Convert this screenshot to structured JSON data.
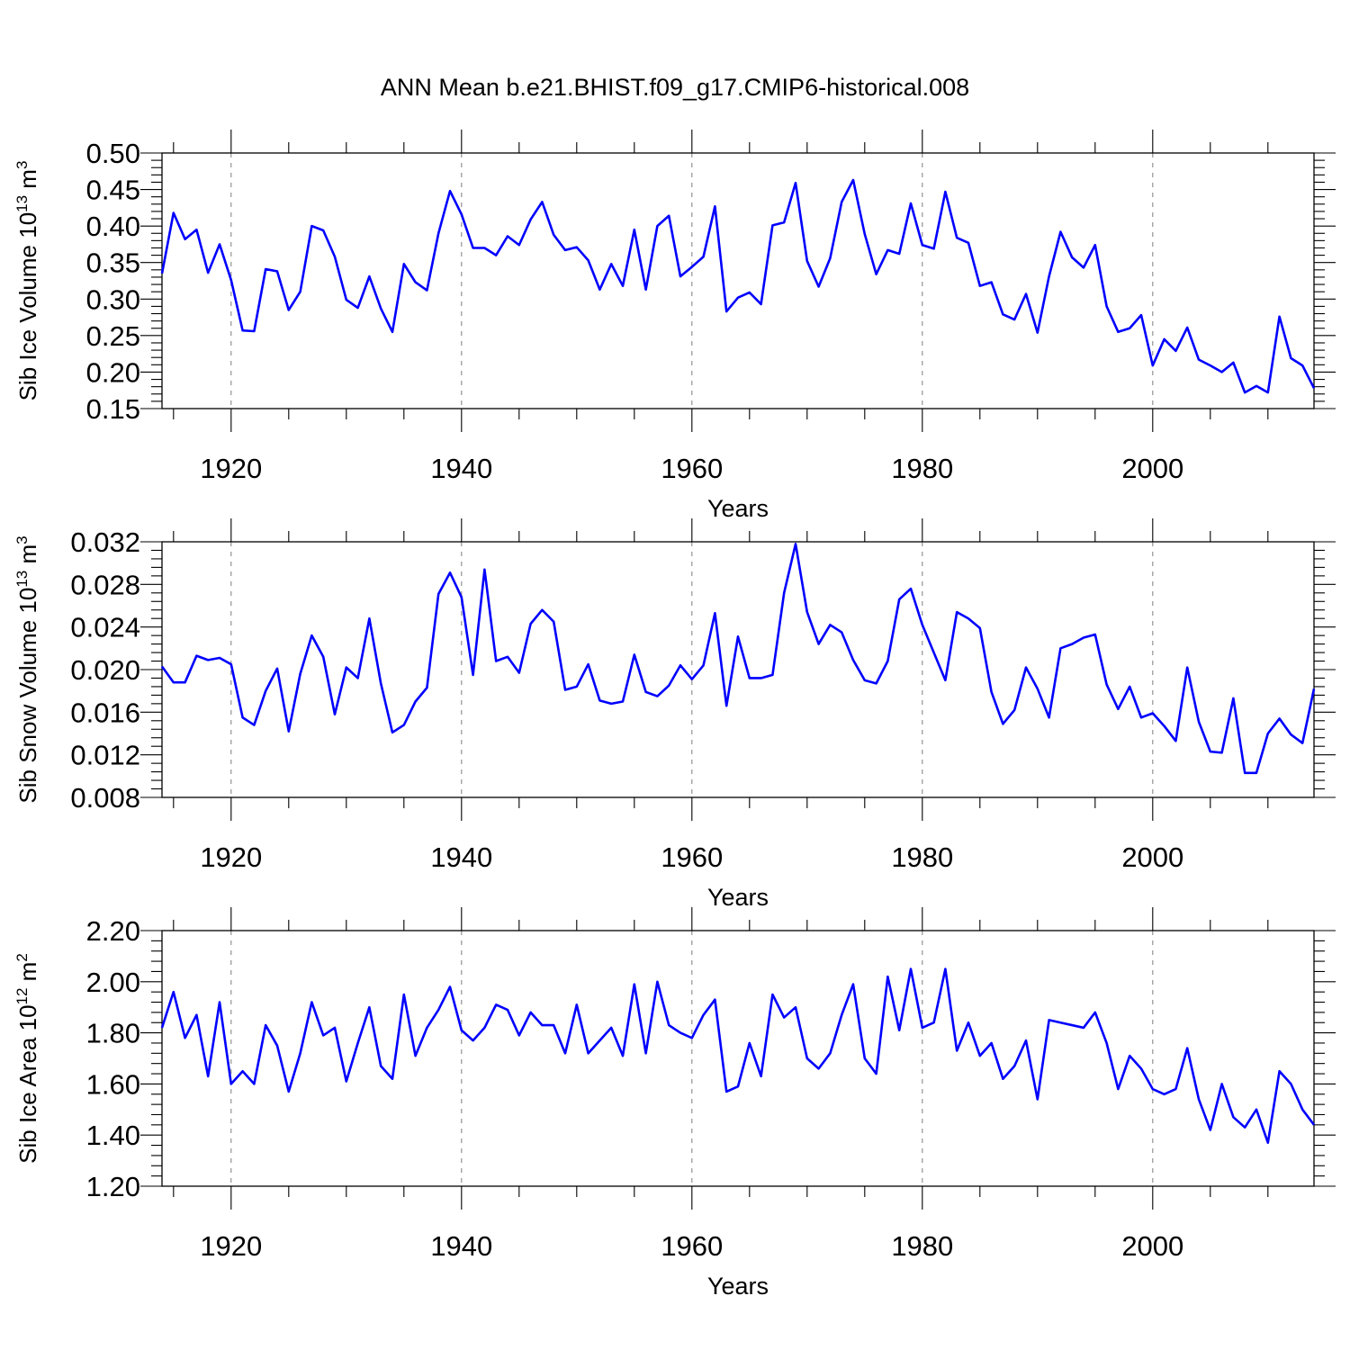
{
  "title": "ANN Mean b.e21.BHIST.f09_g17.CMIP6-historical.008",
  "chart_data": [
    {
      "type": "line",
      "name": "sib-ice-volume",
      "ylabel": "Sib Ice Volume 10",
      "ylabel_exp": "13",
      "ylabel_unit": "m",
      "ylabel_unit_exp": "3",
      "xlabel": "Years",
      "xlim": [
        1914,
        2014
      ],
      "ylim": [
        0.15,
        0.5
      ],
      "yticks": [
        "0.50",
        "0.45",
        "0.40",
        "0.35",
        "0.30",
        "0.25",
        "0.20",
        "0.15"
      ],
      "ytick_values": [
        0.5,
        0.45,
        0.4,
        0.35,
        0.3,
        0.25,
        0.2,
        0.15
      ],
      "xticks": [
        "1920",
        "1940",
        "1960",
        "1980",
        "2000"
      ],
      "xtick_values": [
        1920,
        1940,
        1960,
        1980,
        2000
      ],
      "grid": "dashed vertical at x ticks",
      "series": [
        {
          "name": "Sib Ice Volume",
          "color": "#0000ff",
          "x_start": 1914,
          "values": [
            0.335,
            0.418,
            0.382,
            0.395,
            0.336,
            0.375,
            0.326,
            0.257,
            0.256,
            0.341,
            0.338,
            0.285,
            0.31,
            0.4,
            0.394,
            0.358,
            0.299,
            0.288,
            0.331,
            0.287,
            0.255,
            0.348,
            0.323,
            0.312,
            0.39,
            0.448,
            0.416,
            0.37,
            0.37,
            0.36,
            0.386,
            0.374,
            0.409,
            0.433,
            0.388,
            0.367,
            0.371,
            0.353,
            0.313,
            0.348,
            0.318,
            0.395,
            0.313,
            0.4,
            0.414,
            0.331,
            0.344,
            0.358,
            0.427,
            0.283,
            0.302,
            0.309,
            0.293,
            0.401,
            0.405,
            0.459,
            0.352,
            0.317,
            0.356,
            0.433,
            0.463,
            0.389,
            0.334,
            0.367,
            0.362,
            0.431,
            0.374,
            0.369,
            0.447,
            0.384,
            0.377,
            0.318,
            0.323,
            0.279,
            0.272,
            0.307,
            0.254,
            0.331,
            0.392,
            0.357,
            0.343,
            0.374,
            0.29,
            0.255,
            0.26,
            0.278,
            0.209,
            0.245,
            0.229,
            0.261,
            0.217,
            0.209,
            0.2,
            0.213,
            0.172,
            0.181,
            0.172,
            0.276,
            0.219,
            0.209,
            0.178
          ]
        }
      ]
    },
    {
      "type": "line",
      "name": "sib-snow-volume",
      "ylabel": "Sib Snow Volume 10",
      "ylabel_exp": "13",
      "ylabel_unit": "m",
      "ylabel_unit_exp": "3",
      "xlabel": "Years",
      "xlim": [
        1914,
        2014
      ],
      "ylim": [
        0.008,
        0.032
      ],
      "yticks": [
        "0.032",
        "0.028",
        "0.024",
        "0.020",
        "0.016",
        "0.012",
        "0.008"
      ],
      "ytick_values": [
        0.032,
        0.028,
        0.024,
        0.02,
        0.016,
        0.012,
        0.008
      ],
      "xticks": [
        "1920",
        "1940",
        "1960",
        "1980",
        "2000"
      ],
      "xtick_values": [
        1920,
        1940,
        1960,
        1980,
        2000
      ],
      "grid": "dashed vertical at x ticks",
      "series": [
        {
          "name": "Sib Snow Volume",
          "color": "#0000ff",
          "x_start": 1914,
          "values": [
            0.0203,
            0.0188,
            0.0188,
            0.0213,
            0.0209,
            0.0211,
            0.0205,
            0.0155,
            0.0148,
            0.018,
            0.0201,
            0.0142,
            0.0196,
            0.0232,
            0.0212,
            0.0158,
            0.0202,
            0.0192,
            0.0248,
            0.0187,
            0.0141,
            0.0148,
            0.017,
            0.0183,
            0.0271,
            0.0291,
            0.0268,
            0.0195,
            0.0294,
            0.0208,
            0.0212,
            0.0197,
            0.0243,
            0.0256,
            0.0245,
            0.0181,
            0.0184,
            0.0205,
            0.0171,
            0.0168,
            0.017,
            0.0214,
            0.0179,
            0.0175,
            0.0185,
            0.0204,
            0.0191,
            0.0204,
            0.0253,
            0.0166,
            0.0231,
            0.0192,
            0.0192,
            0.0195,
            0.0272,
            0.0318,
            0.0254,
            0.0224,
            0.0242,
            0.0235,
            0.0209,
            0.019,
            0.0187,
            0.0208,
            0.0266,
            0.0276,
            0.0242,
            0.0216,
            0.019,
            0.0254,
            0.0248,
            0.0239,
            0.0179,
            0.0149,
            0.0162,
            0.0202,
            0.0182,
            0.0155,
            0.022,
            0.0224,
            0.023,
            0.0233,
            0.0186,
            0.0163,
            0.0184,
            0.0155,
            0.0159,
            0.0147,
            0.0133,
            0.0202,
            0.0151,
            0.0123,
            0.0122,
            0.0173,
            0.0103,
            0.0103,
            0.014,
            0.0154,
            0.0139,
            0.0131,
            0.0182
          ]
        }
      ]
    },
    {
      "type": "line",
      "name": "sib-ice-area",
      "ylabel": "Sib Ice Area 10",
      "ylabel_exp": "12",
      "ylabel_unit": "m",
      "ylabel_unit_exp": "2",
      "xlabel": "Years",
      "xlim": [
        1914,
        2014
      ],
      "ylim": [
        1.2,
        2.2
      ],
      "yticks": [
        "2.20",
        "2.00",
        "1.80",
        "1.60",
        "1.40",
        "1.20"
      ],
      "ytick_values": [
        2.2,
        2.0,
        1.8,
        1.6,
        1.4,
        1.2
      ],
      "xticks": [
        "1920",
        "1940",
        "1960",
        "1980",
        "2000"
      ],
      "xtick_values": [
        1920,
        1940,
        1960,
        1980,
        2000
      ],
      "grid": "dashed vertical at x ticks",
      "series": [
        {
          "name": "Sib Ice Area",
          "color": "#0000ff",
          "x_start": 1914,
          "values": [
            1.82,
            1.96,
            1.78,
            1.87,
            1.63,
            1.92,
            1.6,
            1.65,
            1.6,
            1.83,
            1.75,
            1.57,
            1.72,
            1.92,
            1.79,
            1.82,
            1.61,
            1.76,
            1.9,
            1.67,
            1.62,
            1.95,
            1.71,
            1.82,
            1.89,
            1.98,
            1.81,
            1.77,
            1.82,
            1.91,
            1.89,
            1.79,
            1.88,
            1.83,
            1.83,
            1.72,
            1.91,
            1.72,
            1.77,
            1.82,
            1.71,
            1.99,
            1.72,
            2.0,
            1.83,
            1.8,
            1.78,
            1.87,
            1.93,
            1.57,
            1.59,
            1.76,
            1.63,
            1.95,
            1.86,
            1.9,
            1.7,
            1.66,
            1.72,
            1.87,
            1.99,
            1.7,
            1.64,
            2.02,
            1.81,
            2.05,
            1.82,
            1.84,
            2.05,
            1.73,
            1.84,
            1.71,
            1.76,
            1.62,
            1.67,
            1.77,
            1.54,
            1.85,
            1.84,
            1.83,
            1.82,
            1.88,
            1.76,
            1.58,
            1.71,
            1.66,
            1.58,
            1.56,
            1.58,
            1.74,
            1.54,
            1.42,
            1.6,
            1.47,
            1.43,
            1.5,
            1.37,
            1.65,
            1.6,
            1.5,
            1.44
          ]
        }
      ]
    }
  ]
}
